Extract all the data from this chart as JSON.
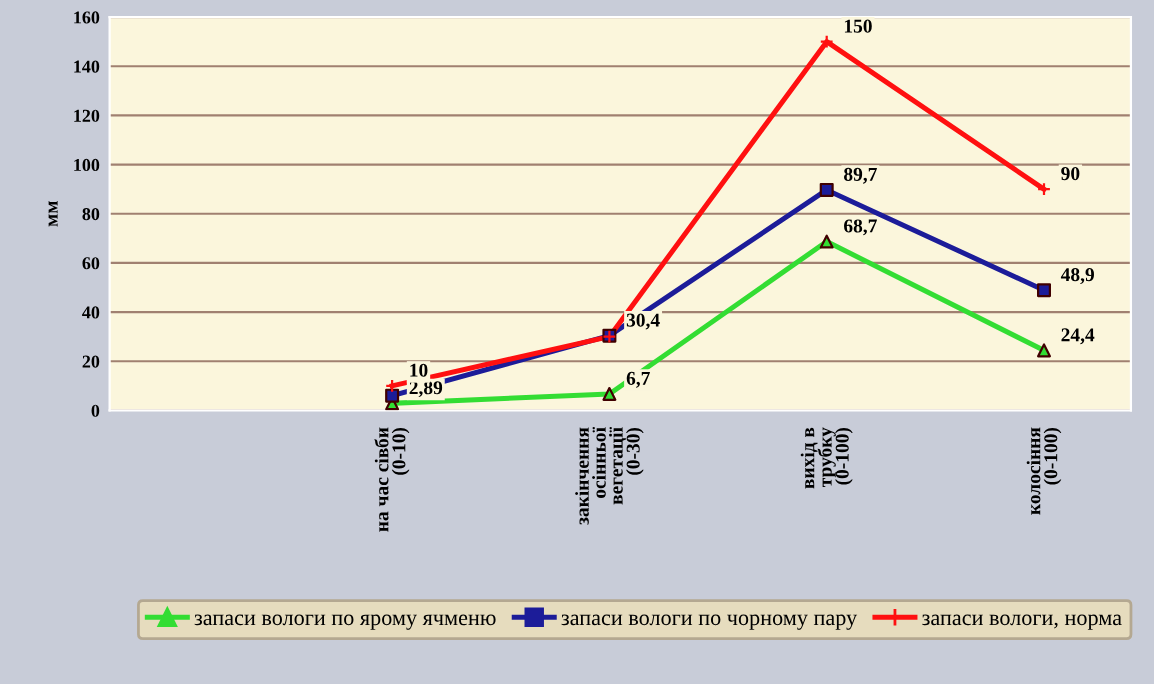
{
  "chart_data": {
    "type": "line",
    "ylabel": "мм",
    "categories": [
      "на час сівби\n(0-10)",
      "закінчення\nосінньої\nвегетації\n(0-30)",
      "вихід в\nтрубку\n(0-100)",
      "колосіння\n(0-100)"
    ],
    "series": [
      {
        "name": "запаси вологи по ярому ячменю",
        "color": "#33dd33",
        "marker": "triangle",
        "values": [
          2.89,
          6.7,
          68.7,
          24.4
        ],
        "value_labels": [
          "2,89",
          "6,7",
          "68,7",
          "24,4"
        ]
      },
      {
        "name": "запаси вологи по чорному пару",
        "color": "#1c1c99",
        "marker": "square",
        "values": [
          6,
          30.4,
          89.7,
          48.9
        ],
        "value_labels": [
          null,
          "30,4",
          "89,7",
          "48,9"
        ]
      },
      {
        "name": "запаси вологи, норма",
        "color": "#ff1010",
        "marker": "cross",
        "values": [
          10,
          30,
          150,
          90
        ],
        "value_labels": [
          "10",
          null,
          "150",
          "90"
        ]
      }
    ],
    "ylim": [
      0,
      160
    ],
    "yticks": [
      0,
      20,
      40,
      60,
      80,
      100,
      120,
      140,
      160
    ],
    "grid": "y",
    "legend": "bottom",
    "line_style": "solid"
  }
}
